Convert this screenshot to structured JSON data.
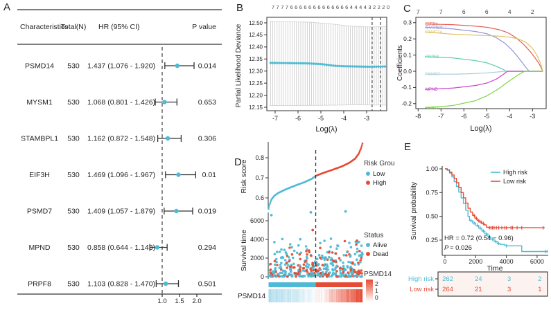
{
  "panel_labels": {
    "A": "A",
    "B": "B",
    "C": "C",
    "D": "D",
    "E": "E"
  },
  "seed": 42,
  "colors": {
    "accent_blue": "#4DBBD5",
    "accent_red": "#E64B35",
    "bar_gray": "#C9C9C9",
    "table_fill": "#FCF3F0",
    "series": {
      "EIF3H": "#E35D55",
      "STAMBPL1": "#9193D6",
      "PSMD14": "#DFC163",
      "PRPF8": "#5BCDAA",
      "PSMD7": "#A9CCD9",
      "MPND": "#C93ECC",
      "MYSM1": "#7ED345"
    },
    "heat_low": "#A8D8EA",
    "heat_high": "#E64B35"
  },
  "chart_data": [
    {
      "panel": "A",
      "type": "table",
      "name": "univariate-cox-forest-plot",
      "headers": [
        "Characteristics",
        "Total(N)",
        "HR (95% CI)",
        "P value"
      ],
      "rows": [
        {
          "gene": "PSMD14",
          "n": "530",
          "hr_text": "1.437 (1.076 - 1.920)",
          "hr": 1.437,
          "lo": 1.076,
          "hi": 1.92,
          "p": "0.014"
        },
        {
          "gene": "MYSM1",
          "n": "530",
          "hr_text": "1.068 (0.801 - 1.426)",
          "hr": 1.068,
          "lo": 0.801,
          "hi": 1.426,
          "p": "0.653"
        },
        {
          "gene": "STAMBPL1",
          "n": "530",
          "hr_text": "1.162 (0.872 - 1.548)",
          "hr": 1.162,
          "lo": 0.872,
          "hi": 1.548,
          "p": "0.306"
        },
        {
          "gene": "EIF3H",
          "n": "530",
          "hr_text": "1.469 (1.096 - 1.967)",
          "hr": 1.469,
          "lo": 1.096,
          "hi": 1.967,
          "p": "0.01"
        },
        {
          "gene": "PSMD7",
          "n": "530",
          "hr_text": "1.409 (1.057 - 1.879)",
          "hr": 1.409,
          "lo": 1.057,
          "hi": 1.879,
          "p": "0.019"
        },
        {
          "gene": "MPND",
          "n": "530",
          "hr_text": "0.858 (0.644 - 1.143)",
          "hr": 0.858,
          "lo": 0.644,
          "hi": 1.143,
          "p": "0.294"
        },
        {
          "gene": "PRPF8",
          "n": "530",
          "hr_text": "1.103 (0.828 - 1.470)",
          "hr": 1.103,
          "lo": 0.828,
          "hi": 1.47,
          "p": "0.501"
        }
      ],
      "x_ticks": [
        "1.0",
        "1.5",
        "2.0"
      ],
      "ref_line": 1.0
    },
    {
      "panel": "B",
      "type": "line",
      "name": "cv-partial-likelihood-deviance",
      "xlabel": "Log(λ)",
      "ylabel": "Partial Likelihood Deviance",
      "top_counts": [
        "7",
        "7",
        "7",
        "7",
        "6",
        "6",
        "6",
        "6",
        "6",
        "6",
        "6",
        "6",
        "6",
        "6",
        "6",
        "6",
        "6",
        "4",
        "4",
        "4",
        "4",
        "3",
        "2",
        "2",
        "2",
        "0"
      ],
      "x_ticks": [
        "-7",
        "-6",
        "-5",
        "-4",
        "-3"
      ],
      "y_ticks": [
        "12.50",
        "12.45",
        "12.40",
        "12.35",
        "12.30",
        "12.25",
        "12.20",
        "12.15"
      ],
      "xlim": [
        -7.36,
        -2.12
      ],
      "ylim": [
        12.136,
        12.523
      ],
      "deviance_keypoints": [
        [
          -7.2,
          12.334
        ],
        [
          -5.6,
          12.332
        ],
        [
          -5.0,
          12.329
        ],
        [
          -4.4,
          12.322
        ],
        [
          -4.0,
          12.32
        ],
        [
          -3.4,
          12.319
        ],
        [
          -2.9,
          12.318
        ],
        [
          -2.2,
          12.319
        ]
      ],
      "upper_keypoints": [
        [
          -7.2,
          12.505
        ],
        [
          -5.5,
          12.503
        ],
        [
          -4.5,
          12.495
        ],
        [
          -3.8,
          12.487
        ],
        [
          -3.0,
          12.483
        ],
        [
          -2.2,
          12.484
        ]
      ],
      "lower_keypoints": [
        [
          -7.2,
          12.157
        ],
        [
          -5.0,
          12.158
        ],
        [
          -3.5,
          12.16
        ],
        [
          -2.2,
          12.159
        ]
      ],
      "lambda_lines": [
        -2.76,
        -2.39
      ]
    },
    {
      "panel": "C",
      "type": "line",
      "name": "lasso-coefficient-paths",
      "xlabel": "Log(λ)",
      "ylabel": "Coefficients",
      "top_counts": [
        "7",
        "7",
        "6",
        "6",
        "4",
        "2"
      ],
      "x_ticks": [
        "-8",
        "-7",
        "-6",
        "-5",
        "-4",
        "-3"
      ],
      "y_ticks": [
        "0.3",
        "0.2",
        "0.1",
        "0.0",
        "-0.1",
        "-0.2"
      ],
      "xlim": [
        -8.1,
        -2.4
      ],
      "ylim": [
        -0.231,
        0.333
      ],
      "series": [
        {
          "name": "EIF3H",
          "zero_from": -2.55,
          "points": [
            [
              -7.7,
              0.292
            ],
            [
              -6.5,
              0.288
            ],
            [
              -5.5,
              0.279
            ],
            [
              -5.0,
              0.272
            ],
            [
              -4.5,
              0.258
            ],
            [
              -4.2,
              0.245
            ],
            [
              -4.0,
              0.232
            ],
            [
              -3.7,
              0.205
            ],
            [
              -3.4,
              0.168
            ],
            [
              -3.1,
              0.122
            ],
            [
              -2.9,
              0.085
            ],
            [
              -2.7,
              0.045
            ],
            [
              -2.55,
              0.0
            ]
          ]
        },
        {
          "name": "STAMBPL1",
          "zero_from": -3.15,
          "points": [
            [
              -7.7,
              0.272
            ],
            [
              -6.5,
              0.262
            ],
            [
              -5.5,
              0.246
            ],
            [
              -5.0,
              0.232
            ],
            [
              -4.6,
              0.209
            ],
            [
              -4.2,
              0.172
            ],
            [
              -3.9,
              0.132
            ],
            [
              -3.6,
              0.082
            ],
            [
              -3.35,
              0.035
            ],
            [
              -3.15,
              0.0
            ]
          ]
        },
        {
          "name": "PSMD14",
          "zero_from": -2.55,
          "points": [
            [
              -7.7,
              0.243
            ],
            [
              -6.5,
              0.229
            ],
            [
              -5.5,
              0.223
            ],
            [
              -5.0,
              0.221
            ],
            [
              -4.5,
              0.217
            ],
            [
              -4.0,
              0.211
            ],
            [
              -3.6,
              0.199
            ],
            [
              -3.3,
              0.18
            ],
            [
              -3.0,
              0.142
            ],
            [
              -2.8,
              0.098
            ],
            [
              -2.65,
              0.05
            ],
            [
              -2.55,
              0.0
            ]
          ]
        },
        {
          "name": "PRPF8",
          "zero_from": -4.15,
          "points": [
            [
              -7.7,
              0.09
            ],
            [
              -6.5,
              0.083
            ],
            [
              -5.5,
              0.066
            ],
            [
              -5.0,
              0.052
            ],
            [
              -4.6,
              0.032
            ],
            [
              -4.3,
              0.013
            ],
            [
              -4.15,
              0.0
            ]
          ]
        },
        {
          "name": "PSMD7",
          "zero_from": -4.2,
          "points": [
            [
              -7.7,
              -0.018
            ],
            [
              -6.4,
              -0.018
            ],
            [
              -5.5,
              -0.014
            ],
            [
              -5.0,
              -0.01
            ],
            [
              -4.5,
              -0.004
            ],
            [
              -4.2,
              0.0
            ]
          ]
        },
        {
          "name": "MPND",
          "zero_from": -4.1,
          "points": [
            [
              -7.7,
              -0.112
            ],
            [
              -6.5,
              -0.104
            ],
            [
              -5.5,
              -0.088
            ],
            [
              -5.0,
              -0.073
            ],
            [
              -4.6,
              -0.05
            ],
            [
              -4.3,
              -0.022
            ],
            [
              -4.1,
              0.0
            ]
          ]
        },
        {
          "name": "MYSM1",
          "zero_from": -3.35,
          "points": [
            [
              -7.7,
              -0.226
            ],
            [
              -6.5,
              -0.212
            ],
            [
              -5.5,
              -0.182
            ],
            [
              -5.0,
              -0.152
            ],
            [
              -4.5,
              -0.11
            ],
            [
              -4.0,
              -0.058
            ],
            [
              -3.6,
              -0.02
            ],
            [
              -3.35,
              0.0
            ]
          ]
        }
      ]
    },
    {
      "panel": "D",
      "type": "scatter",
      "name": "risk-score-distribution",
      "risk_score": {
        "ylabel": "Risk score",
        "y_ticks": [
          "0.8",
          "0.7",
          "0.6"
        ],
        "n": 190,
        "cutoff_fraction": 0.502,
        "curve_keypoints": [
          [
            0,
            0.545
          ],
          [
            0.01,
            0.565
          ],
          [
            0.03,
            0.592
          ],
          [
            0.06,
            0.61
          ],
          [
            0.1,
            0.624
          ],
          [
            0.18,
            0.642
          ],
          [
            0.28,
            0.661
          ],
          [
            0.38,
            0.678
          ],
          [
            0.46,
            0.695
          ],
          [
            0.502,
            0.71
          ],
          [
            0.58,
            0.724
          ],
          [
            0.68,
            0.74
          ],
          [
            0.78,
            0.757
          ],
          [
            0.86,
            0.775
          ],
          [
            0.92,
            0.795
          ],
          [
            0.96,
            0.82
          ],
          [
            0.985,
            0.848
          ],
          [
            1.0,
            0.872
          ]
        ],
        "legend": {
          "title": "Risk Group",
          "items": [
            {
              "label": "Low",
              "color": "accent_blue"
            },
            {
              "label": "High",
              "color": "accent_red"
            }
          ]
        }
      },
      "survival": {
        "ylabel": "Survival time",
        "y_ticks": [
          "6000",
          "4000",
          "2000",
          "0"
        ],
        "n": 420,
        "dead_fraction": 0.32,
        "max_time": 7000,
        "notable_points": [
          [
            0.03,
            6600,
            "Alive"
          ],
          [
            0.45,
            6900,
            "Alive"
          ],
          [
            0.82,
            7000,
            "Alive"
          ],
          [
            0.47,
            5000,
            "Dead"
          ]
        ],
        "legend": {
          "title": "Status",
          "items": [
            {
              "label": "Alive",
              "color": "accent_blue"
            },
            {
              "label": "Dead",
              "color": "accent_red"
            }
          ]
        }
      },
      "heatmap": {
        "row_label": "PSMD14",
        "legend_title": "PSMD14",
        "scale_ticks": [
          "2",
          "1",
          "0"
        ],
        "n_stripes": 150,
        "value_range": [
          -1.2,
          2.5
        ]
      }
    },
    {
      "panel": "E",
      "type": "line",
      "name": "kaplan-meier-survival",
      "xlabel": "Time",
      "ylabel": "Survival probability",
      "x_ticks": [
        "0",
        "2000",
        "4000",
        "6000"
      ],
      "y_ticks": [
        "1.00",
        "0.75",
        "0.50",
        "0.25"
      ],
      "annotation": {
        "line1": "HR = 0.72 (0.54 − 0.96)",
        "line2_prefix": "P",
        "line2": " = 0.026"
      },
      "legend": [
        {
          "label": "High risk",
          "color": "accent_blue"
        },
        {
          "label": "Low risk",
          "color": "accent_red"
        }
      ],
      "series": [
        {
          "name": "High risk",
          "color": "accent_blue",
          "steps": [
            [
              0,
              1.0
            ],
            [
              150,
              0.985
            ],
            [
              300,
              0.955
            ],
            [
              450,
              0.915
            ],
            [
              600,
              0.865
            ],
            [
              750,
              0.815
            ],
            [
              900,
              0.755
            ],
            [
              1050,
              0.695
            ],
            [
              1200,
              0.635
            ],
            [
              1350,
              0.565
            ],
            [
              1500,
              0.5
            ],
            [
              1600,
              0.455
            ],
            [
              1800,
              0.43
            ],
            [
              2000,
              0.405
            ],
            [
              2200,
              0.375
            ],
            [
              2400,
              0.345
            ],
            [
              2600,
              0.315
            ],
            [
              2800,
              0.285
            ],
            [
              3000,
              0.26
            ],
            [
              3200,
              0.235
            ],
            [
              3400,
              0.215
            ],
            [
              3600,
              0.205
            ],
            [
              3900,
              0.19
            ],
            [
              4900,
              0.19
            ],
            [
              5000,
              0.13
            ],
            [
              6700,
              0.13
            ]
          ],
          "censors": [
            1700,
            1900,
            2100,
            2300,
            2500,
            2700,
            2900,
            3100,
            3300,
            3500,
            4000,
            6550,
            6650
          ]
        },
        {
          "name": "Low risk",
          "color": "accent_red",
          "steps": [
            [
              0,
              1.0
            ],
            [
              150,
              0.99
            ],
            [
              300,
              0.965
            ],
            [
              450,
              0.935
            ],
            [
              600,
              0.9
            ],
            [
              750,
              0.855
            ],
            [
              900,
              0.805
            ],
            [
              1050,
              0.75
            ],
            [
              1200,
              0.695
            ],
            [
              1350,
              0.64
            ],
            [
              1500,
              0.585
            ],
            [
              1650,
              0.545
            ],
            [
              1800,
              0.51
            ],
            [
              1950,
              0.48
            ],
            [
              2100,
              0.455
            ],
            [
              2250,
              0.44
            ],
            [
              2400,
              0.425
            ],
            [
              2550,
              0.41
            ],
            [
              2700,
              0.385
            ],
            [
              2850,
              0.38
            ],
            [
              6500,
              0.38
            ]
          ],
          "censors": [
            1900,
            2050,
            2200,
            2350,
            2500,
            2900,
            3000,
            3100,
            3200,
            3350,
            3500,
            3700,
            3900,
            4000,
            4300,
            4400,
            4700,
            5000,
            6400
          ]
        }
      ],
      "risk_table": {
        "times": [
          0,
          2000,
          4000,
          6000
        ],
        "rows": [
          {
            "label": "High risk",
            "color": "accent_blue",
            "counts": [
              "262",
              "24",
              "3",
              "2"
            ]
          },
          {
            "label": "Low risk",
            "color": "accent_red",
            "counts": [
              "264",
              "21",
              "3",
              "1"
            ]
          }
        ]
      }
    }
  ]
}
